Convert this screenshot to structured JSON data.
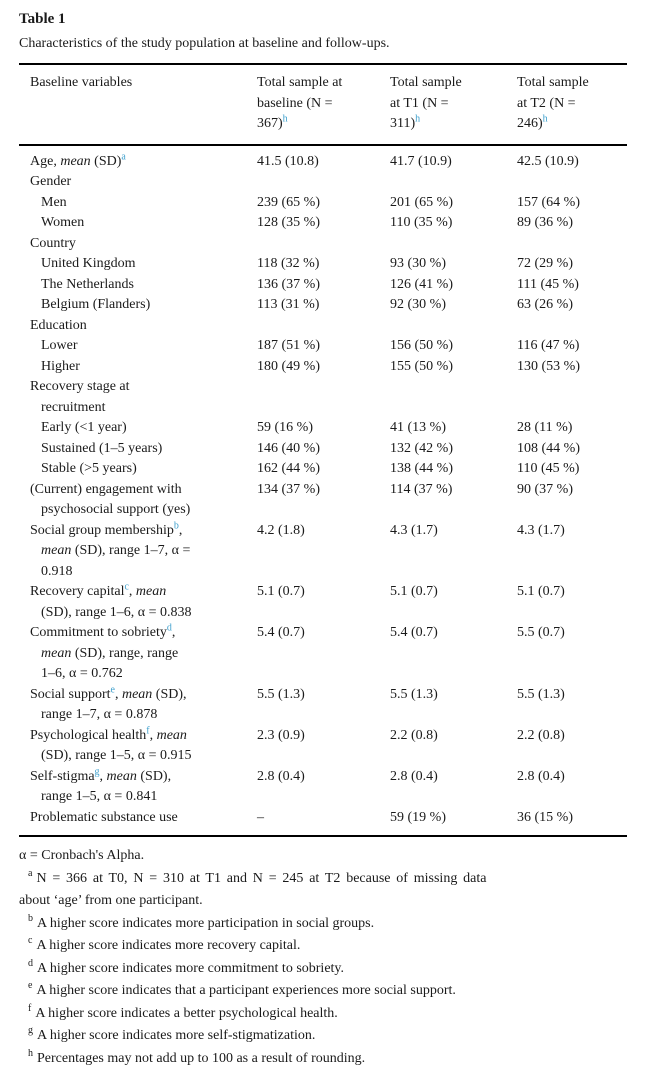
{
  "accent": "#3fa0cd",
  "table_label": "Table 1",
  "caption": "Characteristics of the study population at baseline and follow-ups.",
  "header": {
    "col1": "Baseline variables",
    "sample_columns": [
      {
        "segments": [
          {
            "t": "Total sample at"
          },
          {
            "b": 1
          },
          {
            "t": "baseline (N ="
          },
          {
            "b": 1
          },
          {
            "t": "367)"
          },
          {
            "t": "h",
            "s": 1
          }
        ]
      },
      {
        "segments": [
          {
            "t": "Total sample"
          },
          {
            "b": 1
          },
          {
            "t": "at T1 (N ="
          },
          {
            "b": 1
          },
          {
            "t": "311)"
          },
          {
            "t": "h",
            "s": 1
          }
        ]
      },
      {
        "segments": [
          {
            "t": "Total sample"
          },
          {
            "b": 1
          },
          {
            "t": "at T2 (N ="
          },
          {
            "b": 1
          },
          {
            "t": "246)"
          },
          {
            "t": "h",
            "s": 1
          }
        ]
      }
    ]
  },
  "rows": [
    {
      "ind": 0,
      "label": [
        {
          "t": "Age, "
        },
        {
          "t": "mean",
          "i": 1
        },
        {
          "t": " (SD)"
        },
        {
          "t": "a",
          "s": 1
        }
      ],
      "values": [
        "41.5 (10.8)",
        "41.7 (10.9)",
        "42.5 (10.9)"
      ]
    },
    {
      "ind": 0,
      "label": [
        {
          "t": "Gender"
        }
      ],
      "values": [
        "",
        "",
        ""
      ]
    },
    {
      "ind": 1,
      "label": [
        {
          "t": "Men"
        }
      ],
      "values": [
        "239 (65 %)",
        "201 (65 %)",
        "157 (64 %)"
      ]
    },
    {
      "ind": 1,
      "label": [
        {
          "t": "Women"
        }
      ],
      "values": [
        "128 (35 %)",
        "110 (35 %)",
        "89 (36 %)"
      ]
    },
    {
      "ind": 0,
      "label": [
        {
          "t": "Country"
        }
      ],
      "values": [
        "",
        "",
        ""
      ]
    },
    {
      "ind": 1,
      "label": [
        {
          "t": "United Kingdom"
        }
      ],
      "values": [
        "118 (32 %)",
        "93 (30 %)",
        "72 (29 %)"
      ]
    },
    {
      "ind": 1,
      "label": [
        {
          "t": "The Netherlands"
        }
      ],
      "values": [
        "136 (37 %)",
        "126 (41 %)",
        "111 (45 %)"
      ]
    },
    {
      "ind": 1,
      "label": [
        {
          "t": "Belgium (Flanders)"
        }
      ],
      "values": [
        "113 (31 %)",
        "92 (30 %)",
        "63 (26 %)"
      ]
    },
    {
      "ind": 0,
      "label": [
        {
          "t": "Education"
        }
      ],
      "values": [
        "",
        "",
        ""
      ]
    },
    {
      "ind": 1,
      "label": [
        {
          "t": "Lower"
        }
      ],
      "values": [
        "187 (51 %)",
        "156 (50 %)",
        "116 (47 %)"
      ]
    },
    {
      "ind": 1,
      "label": [
        {
          "t": "Higher"
        }
      ],
      "values": [
        "180 (49 %)",
        "155 (50 %)",
        "130 (53 %)"
      ]
    },
    {
      "ind": 0,
      "label": [
        {
          "t": "Recovery stage at"
        },
        {
          "b": 1
        },
        {
          "t": "recruitment"
        }
      ],
      "values": [
        "",
        "",
        ""
      ]
    },
    {
      "ind": 1,
      "label": [
        {
          "t": "Early (<1 year)"
        }
      ],
      "values": [
        "59 (16 %)",
        "41 (13 %)",
        "28 (11 %)"
      ]
    },
    {
      "ind": 1,
      "label": [
        {
          "t": "Sustained (1–5 years)"
        }
      ],
      "values": [
        "146 (40 %)",
        "132 (42 %)",
        "108 (44 %)"
      ]
    },
    {
      "ind": 1,
      "label": [
        {
          "t": "Stable (>5 years)"
        }
      ],
      "values": [
        "162 (44 %)",
        "138 (44 %)",
        "110 (45 %)"
      ]
    },
    {
      "ind": 0,
      "label": [
        {
          "t": "(Current) engagement with"
        },
        {
          "b": 1
        },
        {
          "t": "psychosocial support (yes)"
        }
      ],
      "values": [
        "134 (37 %)",
        "114 (37 %)",
        "90 (37 %)"
      ]
    },
    {
      "ind": 0,
      "label": [
        {
          "t": "Social group membership"
        },
        {
          "t": "b",
          "s": 1
        },
        {
          "t": ","
        },
        {
          "b": 1
        },
        {
          "t": "mean",
          "i": 1
        },
        {
          "t": " (SD), range 1–7, α ="
        },
        {
          "b": 1
        },
        {
          "t": "0.918"
        }
      ],
      "values": [
        "4.2 (1.8)",
        "4.3 (1.7)",
        "4.3 (1.7)"
      ]
    },
    {
      "ind": 0,
      "label": [
        {
          "t": "Recovery capital"
        },
        {
          "t": "c",
          "s": 1
        },
        {
          "t": ", "
        },
        {
          "t": "mean",
          "i": 1
        },
        {
          "b": 1
        },
        {
          "t": "(SD), range 1–6, α = 0.838"
        }
      ],
      "values": [
        "5.1 (0.7)",
        "5.1 (0.7)",
        "5.1 (0.7)"
      ]
    },
    {
      "ind": 0,
      "label": [
        {
          "t": "Commitment to sobriety"
        },
        {
          "t": "d",
          "s": 1
        },
        {
          "t": ","
        },
        {
          "b": 1
        },
        {
          "t": "mean",
          "i": 1
        },
        {
          "t": " (SD), range, range"
        },
        {
          "b": 1
        },
        {
          "t": "1–6, α = 0.762"
        }
      ],
      "values": [
        "5.4 (0.7)",
        "5.4 (0.7)",
        "5.5 (0.7)"
      ]
    },
    {
      "ind": 0,
      "label": [
        {
          "t": "Social support"
        },
        {
          "t": "e",
          "s": 1
        },
        {
          "t": ", "
        },
        {
          "t": "mean",
          "i": 1
        },
        {
          "t": " (SD),"
        },
        {
          "b": 1
        },
        {
          "t": "range 1–7, α = 0.878"
        }
      ],
      "values": [
        "5.5 (1.3)",
        "5.5 (1.3)",
        "5.5 (1.3)"
      ]
    },
    {
      "ind": 0,
      "label": [
        {
          "t": "Psychological health"
        },
        {
          "t": "f",
          "s": 1
        },
        {
          "t": ", "
        },
        {
          "t": "mean",
          "i": 1
        },
        {
          "b": 1
        },
        {
          "t": "(SD), range 1–5, α = 0.915"
        }
      ],
      "values": [
        "2.3 (0.9)",
        "2.2 (0.8)",
        "2.2 (0.8)"
      ]
    },
    {
      "ind": 0,
      "label": [
        {
          "t": "Self-stigma"
        },
        {
          "t": "g",
          "s": 1
        },
        {
          "t": ", "
        },
        {
          "t": "mean",
          "i": 1
        },
        {
          "t": " (SD),"
        },
        {
          "b": 1
        },
        {
          "t": "range 1–5, α = 0.841"
        }
      ],
      "values": [
        "2.8 (0.4)",
        "2.8 (0.4)",
        "2.8 (0.4)"
      ]
    },
    {
      "ind": 0,
      "label": [
        {
          "t": "Problematic substance use"
        }
      ],
      "values": [
        "–",
        "59 (19 %)",
        "36 (15 %)"
      ]
    }
  ],
  "footnotes": [
    {
      "marker": "",
      "lines": [
        "α = Cronbach's Alpha."
      ]
    },
    {
      "marker": "a",
      "lines": [
        "N = 366 at T0, N = 310 at T1 and N = 245 at T2 because of missing data",
        "about ‘age’ from one participant."
      ]
    },
    {
      "marker": "b",
      "lines": [
        "A higher score indicates more participation in social groups."
      ]
    },
    {
      "marker": "c",
      "lines": [
        "A higher score indicates more recovery capital."
      ]
    },
    {
      "marker": "d",
      "lines": [
        "A higher score indicates more commitment to sobriety."
      ]
    },
    {
      "marker": "e",
      "lines": [
        "A higher score indicates that a participant experiences more social support."
      ]
    },
    {
      "marker": "f",
      "lines": [
        "A higher score indicates a better psychological health."
      ]
    },
    {
      "marker": "g",
      "lines": [
        "A higher score indicates more self-stigmatization."
      ]
    },
    {
      "marker": "h",
      "lines": [
        "Percentages may not add up to 100 as a result of rounding."
      ]
    }
  ]
}
